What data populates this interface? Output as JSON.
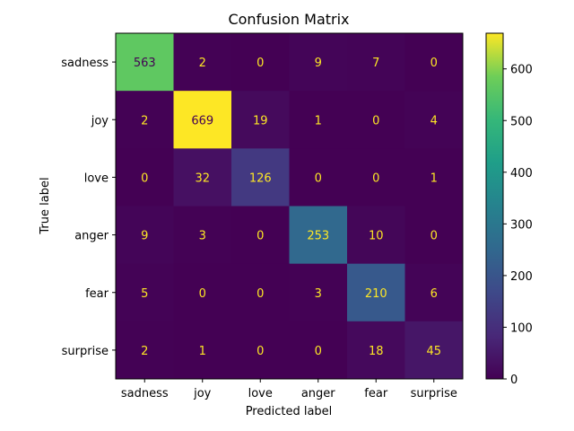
{
  "chart_data": {
    "type": "heatmap",
    "title": "Confusion Matrix",
    "xlabel": "Predicted label",
    "ylabel": "True label",
    "x_categories": [
      "sadness",
      "joy",
      "love",
      "anger",
      "fear",
      "surprise"
    ],
    "y_categories": [
      "sadness",
      "joy",
      "love",
      "anger",
      "fear",
      "surprise"
    ],
    "values": [
      [
        563,
        2,
        0,
        9,
        7,
        0
      ],
      [
        2,
        669,
        19,
        1,
        0,
        4
      ],
      [
        0,
        32,
        126,
        0,
        0,
        1
      ],
      [
        9,
        3,
        0,
        253,
        10,
        0
      ],
      [
        5,
        0,
        0,
        3,
        210,
        6
      ],
      [
        2,
        1,
        0,
        0,
        18,
        45
      ]
    ],
    "colormap": "viridis",
    "vmin": 0,
    "vmax": 669,
    "colorbar_ticks": [
      0,
      100,
      200,
      300,
      400,
      500,
      600
    ],
    "text_color_light": "#fde725",
    "text_color_dark": "#440154",
    "grid": false
  }
}
